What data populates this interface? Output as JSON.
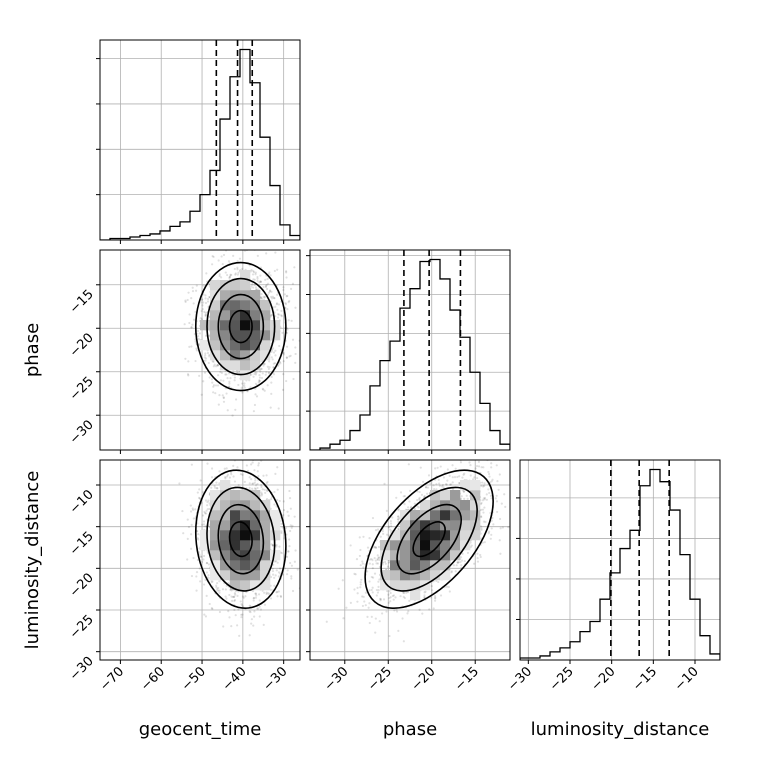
{
  "chart_data": {
    "type": "corner",
    "parameters": [
      "geocent_time",
      "phase",
      "luminosity_distance"
    ],
    "xlabels": [
      "geocent_time",
      "phase",
      "luminosity_distance"
    ],
    "ylabels": [
      "",
      "phase",
      "luminosity_distance"
    ],
    "ranges": {
      "geocent_time": [
        -75,
        -26
      ],
      "phase": [
        -34,
        -11
      ],
      "luminosity_distance": [
        -31,
        -7
      ]
    },
    "xticks": {
      "geocent_time": [
        -70,
        -60,
        -50,
        -40,
        -30
      ],
      "phase": [
        -30,
        -25,
        -20,
        -15
      ],
      "luminosity_distance": [
        -30,
        -25,
        -20,
        -15,
        -10
      ]
    },
    "yticks": {
      "phase": [
        -30,
        -25,
        -20,
        -15
      ],
      "luminosity_distance": [
        -30,
        -25,
        -20,
        -15,
        -10
      ]
    },
    "histograms": {
      "geocent_time": {
        "bin_edges": [
          -75,
          -72.55,
          -70.1,
          -67.65,
          -65.2,
          -62.75,
          -60.3,
          -57.85,
          -55.4,
          -52.95,
          -50.5,
          -48.05,
          -45.6,
          -43.15,
          -40.7,
          -38.25,
          -35.8,
          -33.35,
          -30.9,
          -28.45,
          -26
        ],
        "counts": [
          0,
          1,
          1,
          2,
          3,
          4,
          6,
          9,
          12,
          19,
          30,
          46,
          80,
          108,
          126,
          104,
          68,
          36,
          10,
          3
        ],
        "quantiles": [
          -46.5,
          -41.3,
          -37.7
        ]
      },
      "phase": {
        "bin_edges": [
          -34,
          -32.85,
          -31.7,
          -30.55,
          -29.4,
          -28.25,
          -27.1,
          -25.95,
          -24.8,
          -23.65,
          -22.5,
          -21.35,
          -20.2,
          -19.05,
          -17.9,
          -16.75,
          -15.6,
          -14.45,
          -13.3,
          -12.15,
          -11
        ],
        "counts": [
          0,
          1,
          3,
          5,
          10,
          18,
          33,
          46,
          56,
          73,
          83,
          97,
          98,
          88,
          72,
          58,
          40,
          24,
          10,
          3
        ],
        "quantiles": [
          -23.2,
          -20.3,
          -16.7
        ]
      },
      "luminosity_distance": {
        "bin_edges": [
          -31,
          -29.8,
          -28.6,
          -27.4,
          -26.2,
          -25,
          -23.8,
          -22.6,
          -21.4,
          -20.2,
          -19,
          -17.8,
          -16.6,
          -15.4,
          -14.2,
          -13,
          -11.8,
          -10.6,
          -9.4,
          -8.2,
          -7
        ],
        "counts": [
          1,
          1,
          2,
          4,
          6,
          9,
          14,
          19,
          30,
          43,
          55,
          64,
          86,
          94,
          88,
          74,
          52,
          30,
          12,
          3
        ],
        "quantiles": [
          -20.1,
          -16.7,
          -13.1
        ]
      }
    },
    "joint": [
      {
        "x": "geocent_time",
        "y": "phase",
        "mean": [
          -40.5,
          -19.8
        ],
        "std": [
          4.8,
          3.2
        ],
        "corr": 0.0,
        "seed": 11
      },
      {
        "x": "geocent_time",
        "y": "luminosity_distance",
        "mean": [
          -40.5,
          -16.5
        ],
        "std": [
          4.8,
          3.6
        ],
        "corr": -0.1,
        "seed": 23
      },
      {
        "x": "phase",
        "y": "luminosity_distance",
        "mean": [
          -20.3,
          -16.5
        ],
        "std": [
          3.2,
          3.6
        ],
        "corr": 0.55,
        "seed": 37
      }
    ],
    "contour_levels_sigma": [
      0.5,
      1.0,
      1.5,
      2.0
    ],
    "grid": true
  }
}
